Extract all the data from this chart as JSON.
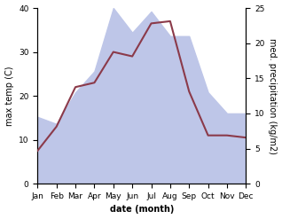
{
  "months": [
    "Jan",
    "Feb",
    "Mar",
    "Apr",
    "May",
    "Jun",
    "Jul",
    "Aug",
    "Sep",
    "Oct",
    "Nov",
    "Dec"
  ],
  "temp": [
    7.5,
    13.0,
    22.0,
    23.0,
    30.0,
    29.0,
    36.5,
    37.0,
    21.0,
    11.0,
    11.0,
    10.5
  ],
  "precip": [
    9.5,
    8.5,
    13.0,
    16.0,
    25.0,
    21.5,
    24.5,
    21.0,
    21.0,
    13.0,
    10.0,
    10.0
  ],
  "temp_color": "#8b3a4a",
  "precip_fill_color": "#bec6e8",
  "temp_ylim": [
    0,
    40
  ],
  "precip_ylim": [
    0,
    25
  ],
  "temp_ylabel": "max temp (C)",
  "precip_ylabel": "med. precipitation (kg/m2)",
  "xlabel": "date (month)",
  "temp_yticks": [
    0,
    10,
    20,
    30,
    40
  ],
  "precip_yticks": [
    0,
    5,
    10,
    15,
    20,
    25
  ],
  "background_color": "#ffffff",
  "ylabel_fontsize": 7,
  "xlabel_fontsize": 7,
  "tick_fontsize": 6.5
}
